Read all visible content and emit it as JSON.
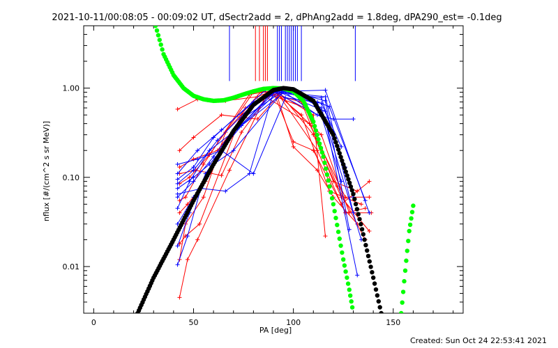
{
  "chart_data": {
    "type": "line",
    "title": "2021-10-11/00:08:05 - 00:09:02 UT, dSectr2add = 2, dPhAng2add = 1.8deg, dPA290_est= -0.1deg",
    "xlabel": "PA [deg]",
    "ylabel": "nflux [#/(cm^2 s sr MeV)]",
    "xlim": [
      -5,
      185
    ],
    "ylim": [
      0.003,
      5
    ],
    "yscale": "log",
    "x_ticks": [
      0,
      50,
      100,
      150
    ],
    "y_ticks": [
      0.01,
      0.1,
      1.0
    ],
    "y_tick_labels": [
      "0.01",
      "0.10",
      "1.00"
    ],
    "grid": false,
    "colors": {
      "red": "#ff0000",
      "blue": "#0000ff",
      "green": "#00ff00",
      "black": "#000000"
    },
    "series": [
      {
        "color": "#ff0000",
        "style": "line-plus",
        "lines": [
          [
            [
              42,
              0.58
            ],
            [
              52,
              0.75
            ],
            [
              66,
              0.72
            ],
            [
              82,
              0.8
            ],
            [
              90,
              0.95
            ],
            [
              110,
              0.5
            ],
            [
              116,
              0.022
            ]
          ],
          [
            [
              43,
              0.2
            ],
            [
              50,
              0.28
            ],
            [
              64,
              0.5
            ],
            [
              82,
              0.45
            ],
            [
              92,
              0.8
            ],
            [
              100,
              0.22
            ],
            [
              112,
              0.12
            ],
            [
              120,
              0.06
            ],
            [
              132,
              0.03
            ]
          ],
          [
            [
              43,
              0.13
            ],
            [
              50,
              0.16
            ],
            [
              62,
              0.2
            ],
            [
              80,
              0.7
            ],
            [
              90,
              0.9
            ],
            [
              100,
              0.25
            ],
            [
              110,
              0.2
            ],
            [
              124,
              0.05
            ],
            [
              138,
              0.09
            ]
          ],
          [
            [
              43,
              0.085
            ],
            [
              48,
              0.1
            ],
            [
              58,
              0.18
            ],
            [
              80,
              0.9
            ],
            [
              90,
              0.92
            ],
            [
              104,
              0.5
            ],
            [
              118,
              0.07
            ],
            [
              134,
              0.05
            ]
          ],
          [
            [
              43,
              0.055
            ],
            [
              46,
              0.06
            ],
            [
              55,
              0.14
            ],
            [
              78,
              0.85
            ],
            [
              92,
              0.95
            ],
            [
              110,
              0.3
            ],
            [
              124,
              0.06
            ],
            [
              138,
              0.025
            ]
          ],
          [
            [
              43,
              0.04
            ],
            [
              47,
              0.05
            ],
            [
              56,
              0.09
            ],
            [
              76,
              0.6
            ],
            [
              92,
              0.88
            ],
            [
              112,
              0.2
            ],
            [
              126,
              0.04
            ],
            [
              136,
              0.045
            ]
          ],
          [
            [
              43,
              0.018
            ],
            [
              46,
              0.022
            ],
            [
              53,
              0.03
            ],
            [
              74,
              0.5
            ],
            [
              90,
              0.95
            ],
            [
              114,
              0.3
            ],
            [
              128,
              0.04
            ],
            [
              139,
              0.04
            ]
          ],
          [
            [
              43,
              0.0045
            ],
            [
              47,
              0.012
            ],
            [
              52,
              0.02
            ],
            [
              68,
              0.12
            ],
            [
              86,
              0.8
            ],
            [
              108,
              0.4
            ],
            [
              126,
              0.06
            ],
            [
              138,
              0.06
            ]
          ],
          [
            [
              43,
              0.11
            ],
            [
              51,
              0.12
            ],
            [
              64,
              0.105
            ],
            [
              74,
              0.32
            ],
            [
              88,
              0.85
            ],
            [
              106,
              0.6
            ],
            [
              122,
              0.08
            ],
            [
              136,
              0.02
            ]
          ],
          [
            [
              43,
              0.012
            ],
            [
              46,
              0.03
            ],
            [
              55,
              0.06
            ],
            [
              66,
              0.32
            ],
            [
              84,
              0.92
            ],
            [
              104,
              0.7
            ],
            [
              120,
              0.09
            ],
            [
              132,
              0.07
            ]
          ]
        ]
      },
      {
        "color": "#0000ff",
        "style": "line-plus",
        "lines": [
          [
            [
              42,
              0.11
            ],
            [
              52,
              0.2
            ],
            [
              64,
              0.34
            ],
            [
              80,
              0.7
            ],
            [
              94,
              0.95
            ],
            [
              112,
              0.5
            ],
            [
              120,
              0.45
            ],
            [
              130,
              0.45
            ]
          ],
          [
            [
              42,
              0.085
            ],
            [
              50,
              0.12
            ],
            [
              62,
              0.26
            ],
            [
              78,
              0.6
            ],
            [
              92,
              0.92
            ],
            [
              116,
              0.55
            ],
            [
              126,
              0.13
            ]
          ],
          [
            [
              42,
              0.06
            ],
            [
              50,
              0.09
            ],
            [
              60,
              0.17
            ],
            [
              74,
              0.45
            ],
            [
              94,
              0.9
            ],
            [
              116,
              0.8
            ],
            [
              130,
              0.04
            ]
          ],
          [
            [
              42,
              0.045
            ],
            [
              48,
              0.09
            ],
            [
              58,
              0.2
            ],
            [
              72,
              0.35
            ],
            [
              96,
              0.92
            ],
            [
              116,
              0.95
            ],
            [
              138,
              0.04
            ]
          ],
          [
            [
              42,
              0.03
            ],
            [
              50,
              0.06
            ],
            [
              60,
              0.14
            ],
            [
              70,
              0.2
            ],
            [
              96,
              0.98
            ],
            [
              114,
              0.6
            ],
            [
              134,
              0.02
            ]
          ],
          [
            [
              42,
              0.017
            ],
            [
              48,
              0.04
            ],
            [
              56,
              0.11
            ],
            [
              70,
              0.32
            ],
            [
              92,
              0.96
            ],
            [
              112,
              0.7
            ],
            [
              124,
              0.09
            ]
          ],
          [
            [
              42,
              0.0105
            ],
            [
              47,
              0.022
            ],
            [
              54,
              0.08
            ],
            [
              68,
              0.28
            ],
            [
              90,
              0.92
            ],
            [
              116,
              0.45
            ],
            [
              132,
              0.008
            ]
          ],
          [
            [
              42,
              0.065
            ],
            [
              54,
              0.075
            ],
            [
              66,
              0.07
            ],
            [
              78,
              0.11
            ],
            [
              90,
              0.9
            ],
            [
              114,
              0.78
            ],
            [
              130,
              0.06
            ]
          ],
          [
            [
              42,
              0.14
            ],
            [
              52,
              0.16
            ],
            [
              64,
              0.2
            ],
            [
              80,
              0.11
            ],
            [
              96,
              0.78
            ],
            [
              114,
              0.68
            ],
            [
              124,
              0.22
            ]
          ],
          [
            [
              42,
              0.095
            ],
            [
              50,
              0.13
            ],
            [
              60,
              0.28
            ],
            [
              86,
              0.95
            ],
            [
              100,
              0.88
            ],
            [
              118,
              0.62
            ],
            [
              136,
              0.055
            ]
          ],
          [
            [
              42,
              0.075
            ],
            [
              50,
              0.1
            ],
            [
              58,
              0.14
            ],
            [
              74,
              0.38
            ],
            [
              94,
              0.98
            ],
            [
              116,
              0.72
            ],
            [
              128,
              0.026
            ]
          ]
        ]
      },
      {
        "color": "#0000ff",
        "style": "vertical-tick",
        "x": [
          68,
          92,
          93,
          94,
          96,
          97,
          98,
          99,
          100,
          101,
          102,
          104,
          131
        ]
      },
      {
        "color": "#ff0000",
        "style": "vertical-tick",
        "x": [
          81,
          83,
          85,
          86,
          87
        ]
      },
      {
        "color": "#00ff00",
        "style": "thick-dots",
        "x": [
          31,
          35,
          40,
          45,
          50,
          55,
          60,
          65,
          70,
          75,
          80,
          85,
          90,
          95,
          100,
          105,
          110,
          115,
          120,
          125,
          128,
          130,
          154,
          156,
          158,
          160
        ],
        "y": [
          5.0,
          2.4,
          1.4,
          1.0,
          0.82,
          0.75,
          0.72,
          0.73,
          0.78,
          0.85,
          0.92,
          0.98,
          1.0,
          0.99,
          0.92,
          0.72,
          0.42,
          0.17,
          0.05,
          0.012,
          0.0055,
          0.003,
          0.003,
          0.009,
          0.025,
          0.048
        ]
      },
      {
        "color": "#000000",
        "style": "thick-dots",
        "x": [
          22,
          30,
          40,
          50,
          60,
          70,
          80,
          90,
          95,
          100,
          110,
          120,
          130,
          135,
          140,
          144
        ],
        "y": [
          0.003,
          0.0075,
          0.02,
          0.055,
          0.14,
          0.33,
          0.65,
          0.95,
          1.0,
          0.97,
          0.72,
          0.3,
          0.065,
          0.023,
          0.0075,
          0.003
        ]
      }
    ]
  },
  "footer": {
    "created": "Created: Sun Oct 24 22:53:41 2021"
  }
}
